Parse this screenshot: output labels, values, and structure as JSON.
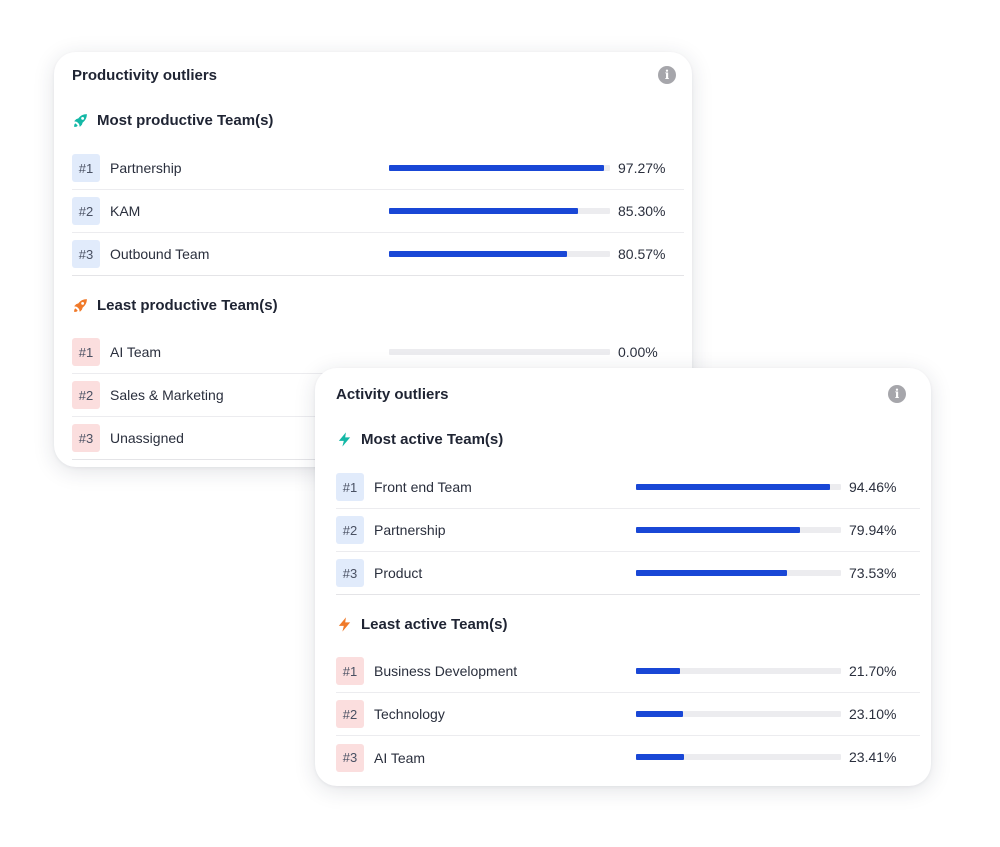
{
  "productivity": {
    "title": "Productivity outliers",
    "most": {
      "title": "Most productive Team(s)",
      "icon": "rocket-icon",
      "color": "#14b8a6",
      "items": [
        {
          "rank": "#1",
          "name": "Partnership",
          "value": 97.27,
          "label": "97.27%"
        },
        {
          "rank": "#2",
          "name": "KAM",
          "value": 85.3,
          "label": "85.30%"
        },
        {
          "rank": "#3",
          "name": "Outbound Team",
          "value": 80.57,
          "label": "80.57%"
        }
      ]
    },
    "least": {
      "title": "Least productive Team(s)",
      "icon": "rocket-icon",
      "color": "#f07a2a",
      "items": [
        {
          "rank": "#1",
          "name": "AI Team",
          "value": 0.0,
          "label": "0.00%"
        },
        {
          "rank": "#2",
          "name": "Sales & Marketing"
        },
        {
          "rank": "#3",
          "name": "Unassigned"
        }
      ]
    }
  },
  "activity": {
    "title": "Activity outliers",
    "most": {
      "title": "Most active Team(s)",
      "icon": "lightning-icon",
      "color": "#14b8a6",
      "items": [
        {
          "rank": "#1",
          "name": "Front end Team",
          "value": 94.46,
          "label": "94.46%"
        },
        {
          "rank": "#2",
          "name": "Partnership",
          "value": 79.94,
          "label": "79.94%"
        },
        {
          "rank": "#3",
          "name": "Product",
          "value": 73.53,
          "label": "73.53%"
        }
      ]
    },
    "least": {
      "title": "Least active Team(s)",
      "icon": "lightning-icon",
      "color": "#f07a2a",
      "items": [
        {
          "rank": "#1",
          "name": "Business Development",
          "value": 21.7,
          "label": "21.70%"
        },
        {
          "rank": "#2",
          "name": "Technology",
          "value": 23.1,
          "label": "23.10%"
        },
        {
          "rank": "#3",
          "name": "AI Team",
          "value": 23.41,
          "label": "23.41%"
        }
      ]
    }
  },
  "info_icon_glyph": "i"
}
